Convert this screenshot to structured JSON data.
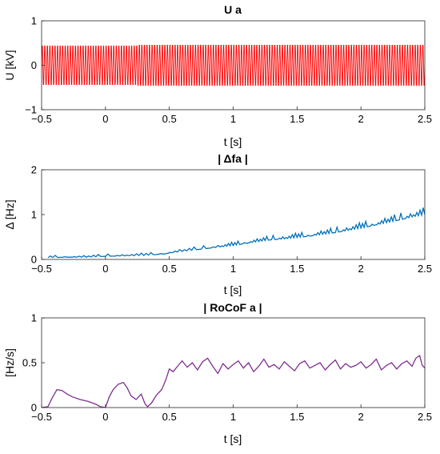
{
  "chart_data": [
    {
      "type": "line",
      "title": "U a",
      "xlabel": "t [s]",
      "ylabel": "U [kV]",
      "xlim": [
        -0.5,
        2.5
      ],
      "ylim": [
        -1,
        1
      ],
      "xticks": [
        "-0.5",
        "0",
        "0.5",
        "1",
        "1.5",
        "2",
        "2.5"
      ],
      "yticks": [
        "-1",
        "0",
        "1"
      ],
      "grid": false,
      "color": "#ff0000",
      "series": [
        {
          "signal": "sine-oscillation",
          "x_start": -0.5,
          "x_end": 2.5,
          "amplitude": 0.5,
          "amplitude_after_0_25s": 0.52,
          "frequency_hz": 50
        }
      ]
    },
    {
      "type": "line",
      "title": "| Δfa |",
      "xlabel": "t [s]",
      "ylabel": "Δ [Hz]",
      "xlim": [
        -0.5,
        2.5
      ],
      "ylim": [
        0,
        2
      ],
      "xticks": [
        "-0.5",
        "0",
        "0.5",
        "1",
        "1.5",
        "2",
        "2.5"
      ],
      "yticks": [
        "0",
        "1",
        "2"
      ],
      "grid": false,
      "color": "#0072bd",
      "series": [
        {
          "x": [
            -0.45,
            -0.3,
            -0.15,
            0.0,
            0.15,
            0.3,
            0.45,
            0.6,
            0.75,
            0.9,
            1.0,
            1.1,
            1.2,
            1.3,
            1.4,
            1.5,
            1.6,
            1.7,
            1.8,
            1.9,
            2.0,
            2.1,
            2.2,
            2.3,
            2.4,
            2.5
          ],
          "y": [
            0.04,
            0.05,
            0.05,
            0.07,
            0.08,
            0.09,
            0.12,
            0.18,
            0.23,
            0.28,
            0.31,
            0.36,
            0.4,
            0.44,
            0.46,
            0.49,
            0.52,
            0.56,
            0.6,
            0.65,
            0.7,
            0.76,
            0.82,
            0.88,
            0.95,
            1.0
          ]
        }
      ]
    },
    {
      "type": "line",
      "title": "| RoCoF a |",
      "xlabel": "t [s]",
      "ylabel": "[Hz/s]",
      "xlim": [
        -0.5,
        2.5
      ],
      "ylim": [
        0,
        1
      ],
      "xticks": [
        "-0.5",
        "0",
        "0.5",
        "1",
        "1.5",
        "2",
        "2.5"
      ],
      "yticks": [
        "0",
        "0.5",
        "1"
      ],
      "grid": false,
      "color": "#7e2f8e",
      "series": [
        {
          "x": [
            -0.5,
            -0.45,
            -0.42,
            -0.38,
            -0.34,
            -0.3,
            -0.26,
            -0.2,
            -0.14,
            -0.08,
            -0.04,
            0.0,
            0.03,
            0.06,
            0.1,
            0.14,
            0.17,
            0.2,
            0.24,
            0.28,
            0.31,
            0.33,
            0.36,
            0.4,
            0.44,
            0.47,
            0.5,
            0.53,
            0.57,
            0.6,
            0.64,
            0.68,
            0.72,
            0.76,
            0.8,
            0.84,
            0.88,
            0.92,
            0.96,
            1.0,
            1.04,
            1.08,
            1.12,
            1.16,
            1.2,
            1.24,
            1.28,
            1.32,
            1.36,
            1.4,
            1.44,
            1.48,
            1.52,
            1.56,
            1.6,
            1.64,
            1.68,
            1.72,
            1.76,
            1.8,
            1.84,
            1.88,
            1.92,
            1.96,
            2.0,
            2.04,
            2.08,
            2.12,
            2.16,
            2.2,
            2.24,
            2.28,
            2.32,
            2.36,
            2.4,
            2.43,
            2.46,
            2.48,
            2.5
          ],
          "y": [
            0.0,
            0.01,
            0.1,
            0.2,
            0.19,
            0.15,
            0.12,
            0.09,
            0.07,
            0.04,
            0.01,
            0.0,
            0.12,
            0.2,
            0.26,
            0.28,
            0.22,
            0.13,
            0.09,
            0.15,
            0.04,
            0.01,
            0.05,
            0.14,
            0.2,
            0.3,
            0.43,
            0.4,
            0.47,
            0.52,
            0.45,
            0.5,
            0.42,
            0.51,
            0.55,
            0.46,
            0.38,
            0.49,
            0.43,
            0.48,
            0.52,
            0.44,
            0.5,
            0.4,
            0.46,
            0.54,
            0.45,
            0.48,
            0.43,
            0.51,
            0.46,
            0.41,
            0.49,
            0.52,
            0.44,
            0.47,
            0.5,
            0.42,
            0.48,
            0.53,
            0.43,
            0.49,
            0.45,
            0.47,
            0.51,
            0.44,
            0.48,
            0.54,
            0.42,
            0.47,
            0.5,
            0.43,
            0.49,
            0.52,
            0.46,
            0.55,
            0.58,
            0.47,
            0.44
          ]
        }
      ]
    }
  ]
}
